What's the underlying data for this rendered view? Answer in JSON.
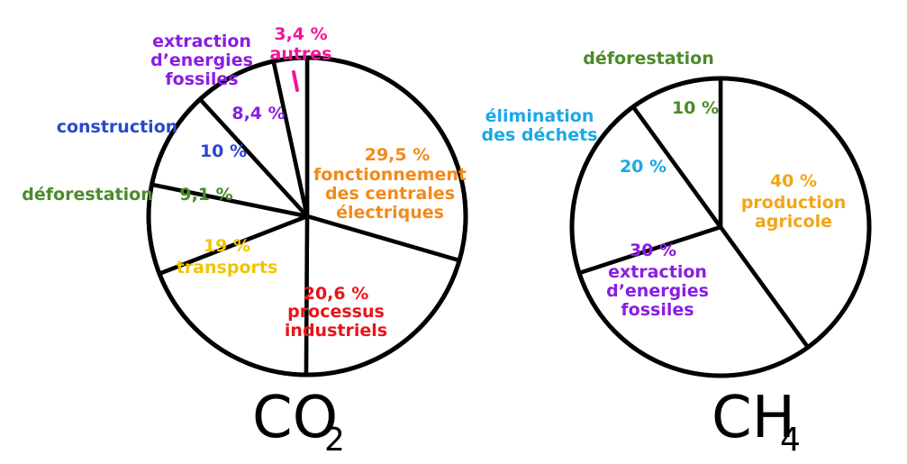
{
  "chart_data": [
    {
      "type": "pie",
      "title": "CO",
      "title_subscript": "2",
      "start_angle_deg": 0,
      "slices": [
        {
          "value": 29.5,
          "label_value": "29,5 %",
          "label_text": "fonctionnement\ndes centrales\nélectriques",
          "color": "#f28a1a",
          "label_position": "inside"
        },
        {
          "value": 20.6,
          "label_value": "20,6 %",
          "label_text": "processus\nindustriels",
          "color": "#e8141b",
          "label_position": "inside"
        },
        {
          "value": 19,
          "label_value": "19 %",
          "label_text": "transports",
          "color": "#f2c500",
          "label_position": "inside"
        },
        {
          "value": 9.1,
          "label_value": "9,1 %",
          "label_text": "déforestation",
          "color": "#4c8a2a",
          "label_position": "outside"
        },
        {
          "value": 10,
          "label_value": "10 %",
          "label_text": "construction",
          "color": "#2a46d0",
          "label_position": "outside"
        },
        {
          "value": 8.4,
          "label_value": "8,4 %",
          "label_text": "extraction\nd’energies\nfossiles",
          "color": "#8a1ee0",
          "label_position": "outside"
        },
        {
          "value": 3.4,
          "label_value": "3,4 %",
          "label_text": "autres",
          "color": "#f0149a",
          "label_position": "outside"
        }
      ]
    },
    {
      "type": "pie",
      "title": "CH",
      "title_subscript": "4",
      "start_angle_deg": 0,
      "slices": [
        {
          "value": 40,
          "label_value": "40 %",
          "label_text": "production\nagricole",
          "color": "#f2a51a",
          "label_position": "inside"
        },
        {
          "value": 30,
          "label_value": "30 %",
          "label_text": "extraction\nd’energies\nfossiles",
          "color": "#8a1ee0",
          "label_position": "inside"
        },
        {
          "value": 20,
          "label_value": "20 %",
          "label_text": "élimination\ndes déchets",
          "color": "#1aa8e6",
          "label_position": "inside-value-outside-text"
        },
        {
          "value": 10,
          "label_value": "10 %",
          "label_text": "déforestation",
          "color": "#4c8a2a",
          "label_position": "inside-value-outside-text"
        }
      ]
    }
  ]
}
